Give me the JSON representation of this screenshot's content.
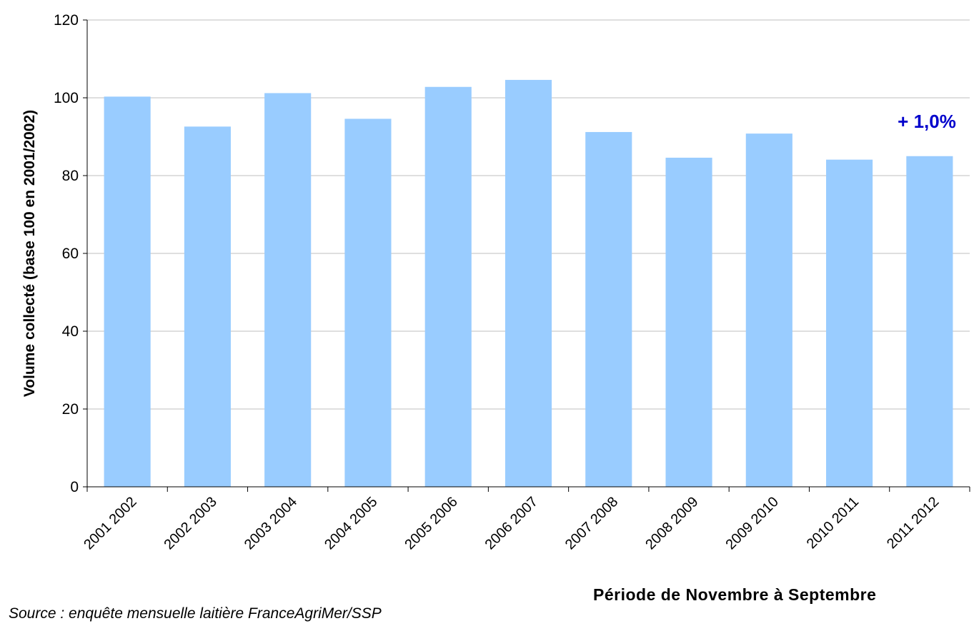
{
  "chart_data": {
    "type": "bar",
    "title": "",
    "xlabel": "Période de Novembre à Septembre",
    "ylabel": "Volume collecté (base 100 en 2001/2002)",
    "categories": [
      "2001 2002",
      "2002 2003",
      "2003 2004",
      "2004 2005",
      "2005 2006",
      "2006 2007",
      "2007 2008",
      "2008 2009",
      "2009 2010",
      "2010 2011",
      "2011 2012"
    ],
    "values": [
      100.3,
      92.6,
      101.2,
      94.6,
      102.8,
      104.6,
      91.2,
      84.6,
      90.8,
      84.1,
      85.0
    ],
    "ylim": [
      0,
      120
    ],
    "yticks": [
      0,
      20,
      40,
      60,
      80,
      100,
      120
    ],
    "grid": true,
    "bar_color": "#99ccff",
    "annotation": {
      "text": "+ 1,0%",
      "color": "#0000cc",
      "category": "2011 2012"
    }
  },
  "source": "Source : enquête mensuelle laitière FranceAgriMer/SSP"
}
